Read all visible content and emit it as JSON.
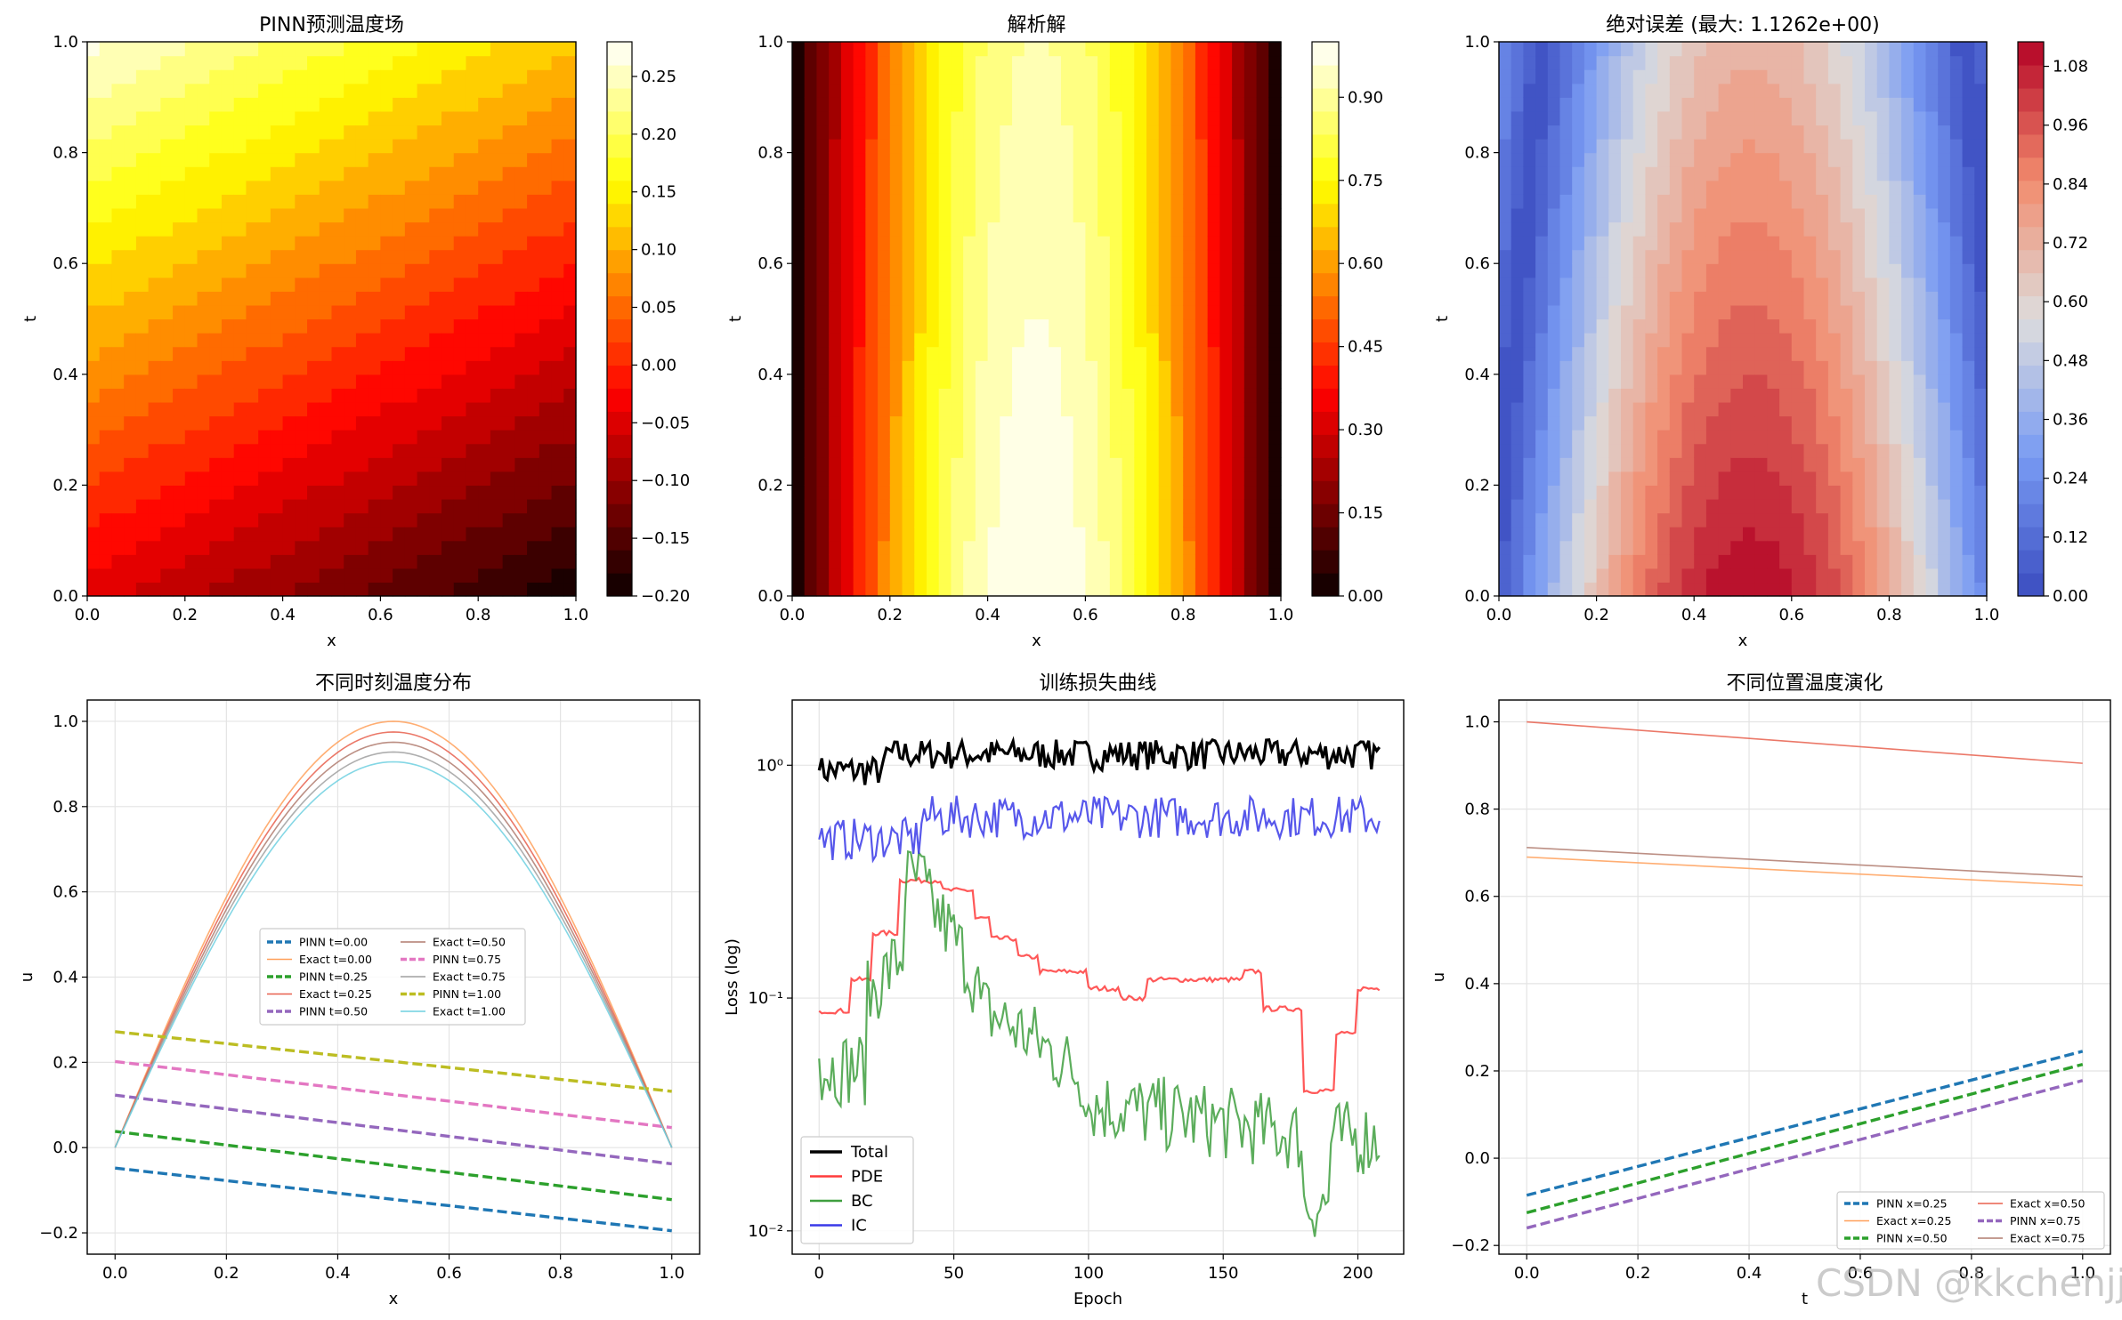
{
  "watermark": "CSDN @kkchenjj",
  "chart_data": [
    {
      "type": "heatmap",
      "title": "PINN预测温度场",
      "xlabel": "x",
      "ylabel": "t",
      "xlim": [
        0,
        1
      ],
      "ylim": [
        0,
        1
      ],
      "xticks": [
        "0.0",
        "0.2",
        "0.4",
        "0.6",
        "0.8",
        "1.0"
      ],
      "yticks": [
        "0.0",
        "0.2",
        "0.4",
        "0.6",
        "0.8",
        "1.0"
      ],
      "colormap": "hot",
      "field": "u(x,t) ≈ -0.045 - 0.15x + 0.31t",
      "range": [
        -0.2,
        0.28
      ],
      "colorbar_ticks": [
        "0.25",
        "0.20",
        "0.15",
        "0.10",
        "0.05",
        "0.00",
        "−0.05",
        "−0.10",
        "−0.15",
        "−0.20"
      ],
      "colorbar_values": [
        0.25,
        0.2,
        0.15,
        0.1,
        0.05,
        0.0,
        -0.05,
        -0.1,
        -0.15,
        -0.2
      ]
    },
    {
      "type": "heatmap",
      "title": "解析解",
      "xlabel": "x",
      "ylabel": "t",
      "xlim": [
        0,
        1
      ],
      "ylim": [
        0,
        1
      ],
      "xticks": [
        "0.0",
        "0.2",
        "0.4",
        "0.6",
        "0.8",
        "1.0"
      ],
      "yticks": [
        "0.0",
        "0.2",
        "0.4",
        "0.6",
        "0.8",
        "1.0"
      ],
      "colormap": "hot",
      "field": "u(x,t) = sin(pi x) exp(-0.1 t)",
      "range": [
        0,
        1
      ],
      "colorbar_ticks": [
        "0.90",
        "0.75",
        "0.60",
        "0.45",
        "0.30",
        "0.15",
        "0.00"
      ],
      "colorbar_values": [
        0.9,
        0.75,
        0.6,
        0.45,
        0.3,
        0.15,
        0.0
      ]
    },
    {
      "type": "heatmap",
      "title": "绝对误差 (最大: 1.1262e+00)",
      "xlabel": "x",
      "ylabel": "t",
      "xlim": [
        0,
        1
      ],
      "ylim": [
        0,
        1
      ],
      "xticks": [
        "0.0",
        "0.2",
        "0.4",
        "0.6",
        "0.8",
        "1.0"
      ],
      "yticks": [
        "0.0",
        "0.2",
        "0.4",
        "0.6",
        "0.8",
        "1.0"
      ],
      "colormap": "coolwarm",
      "field": "|PINN - exact|",
      "range": [
        0,
        1.13
      ],
      "colorbar_ticks": [
        "1.08",
        "0.96",
        "0.84",
        "0.72",
        "0.60",
        "0.48",
        "0.36",
        "0.24",
        "0.12",
        "0.00"
      ],
      "colorbar_values": [
        1.08,
        0.96,
        0.84,
        0.72,
        0.6,
        0.48,
        0.36,
        0.24,
        0.12,
        0.0
      ]
    },
    {
      "type": "line",
      "title": "不同时刻温度分布",
      "xlabel": "x",
      "ylabel": "u",
      "xlim": [
        -0.05,
        1.05
      ],
      "ylim": [
        -0.25,
        1.05
      ],
      "xticks": [
        "0.0",
        "0.2",
        "0.4",
        "0.6",
        "0.8",
        "1.0"
      ],
      "yticks": [
        "−0.2",
        "0.0",
        "0.2",
        "0.4",
        "0.6",
        "0.8",
        "1.0"
      ],
      "grid": true,
      "legend_position": "center",
      "series": [
        {
          "name": "PINN t=0.00",
          "color": "#1f77b4",
          "dash": true,
          "x": [
            0,
            1
          ],
          "y": [
            -0.048,
            -0.195
          ]
        },
        {
          "name": "Exact t=0.00",
          "color": "#ffa05a",
          "dash": false,
          "amplitude": 1.0
        },
        {
          "name": "PINN t=0.25",
          "color": "#2ca02c",
          "dash": true,
          "x": [
            0,
            1
          ],
          "y": [
            0.038,
            -0.122
          ]
        },
        {
          "name": "Exact t=0.25",
          "color": "#e8604e",
          "dash": false,
          "amplitude": 0.975
        },
        {
          "name": "PINN t=0.50",
          "color": "#9467bd",
          "dash": true,
          "x": [
            0,
            1
          ],
          "y": [
            0.123,
            -0.038
          ]
        },
        {
          "name": "Exact t=0.50",
          "color": "#b07b6e",
          "dash": false,
          "amplitude": 0.951
        },
        {
          "name": "PINN t=0.75",
          "color": "#e377c2",
          "dash": true,
          "x": [
            0,
            1
          ],
          "y": [
            0.202,
            0.047
          ]
        },
        {
          "name": "Exact t=0.75",
          "color": "#a0a0a0",
          "dash": false,
          "amplitude": 0.928
        },
        {
          "name": "PINN t=1.00",
          "color": "#bcbd22",
          "dash": true,
          "x": [
            0,
            1
          ],
          "y": [
            0.272,
            0.132
          ]
        },
        {
          "name": "Exact t=1.00",
          "color": "#6fd0e0",
          "dash": false,
          "amplitude": 0.905
        }
      ]
    },
    {
      "type": "line",
      "title": "训练损失曲线",
      "xlabel": "Epoch",
      "ylabel": "Loss (log)",
      "yscale": "log",
      "xlim": [
        -10,
        217
      ],
      "ylim_log10": [
        -2.1,
        0.28
      ],
      "xticks": [
        "0",
        "50",
        "100",
        "150",
        "200"
      ],
      "yticks": [
        "10⁰",
        "10⁻¹",
        "10⁻²"
      ],
      "grid": true,
      "legend_position": "lower left",
      "epochs": [
        0,
        208
      ],
      "series": [
        {
          "name": "Total",
          "color": "#000000",
          "start": 0.95,
          "level": 1.12,
          "noise": 0.065
        },
        {
          "name": "PDE",
          "color": "#ff3b3b",
          "start": 0.088,
          "level": 0.07
        },
        {
          "name": "BC",
          "color": "#3f9f3f",
          "start": 0.055,
          "level": 0.02
        },
        {
          "name": "IC",
          "color": "#3a3ae8",
          "start": 0.48,
          "level": 0.6,
          "noise": 0.08
        }
      ]
    },
    {
      "type": "line",
      "title": "不同位置温度演化",
      "xlabel": "t",
      "ylabel": "u",
      "xlim": [
        -0.05,
        1.05
      ],
      "ylim": [
        -0.22,
        1.05
      ],
      "xticks": [
        "0.0",
        "0.2",
        "0.4",
        "0.6",
        "0.8",
        "1.0"
      ],
      "yticks": [
        "−0.2",
        "0.0",
        "0.2",
        "0.4",
        "0.6",
        "0.8",
        "1.0"
      ],
      "grid": true,
      "legend_position": "lower right",
      "series": [
        {
          "name": "PINN x=0.25",
          "color": "#1f77b4",
          "dash": true,
          "x": [
            0,
            1
          ],
          "y": [
            -0.085,
            0.245
          ]
        },
        {
          "name": "Exact x=0.25",
          "color": "#ffa05a",
          "dash": false,
          "x": [
            0,
            1
          ],
          "y": [
            0.69,
            0.625
          ]
        },
        {
          "name": "PINN x=0.50",
          "color": "#2ca02c",
          "dash": true,
          "x": [
            0,
            1
          ],
          "y": [
            -0.125,
            0.215
          ]
        },
        {
          "name": "Exact x=0.50",
          "color": "#e8604e",
          "dash": false,
          "x": [
            0,
            1
          ],
          "y": [
            1.0,
            0.905
          ]
        },
        {
          "name": "PINN x=0.75",
          "color": "#9467bd",
          "dash": true,
          "x": [
            0,
            1
          ],
          "y": [
            -0.16,
            0.178
          ]
        },
        {
          "name": "Exact x=0.75",
          "color": "#b07b6e",
          "dash": false,
          "x": [
            0,
            1
          ],
          "y": [
            0.712,
            0.645
          ]
        }
      ]
    }
  ]
}
